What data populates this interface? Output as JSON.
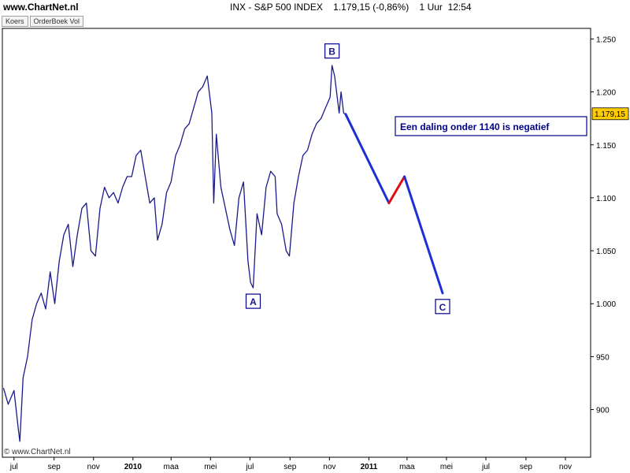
{
  "header": {
    "site": "www.ChartNet.nl",
    "quote": "INX - S&P 500 INDEX    1.179,15 (-0,86%)    1 Uur  12:54"
  },
  "tabs": [
    {
      "label": "Koers"
    },
    {
      "label": "OrderBoek Vol"
    }
  ],
  "footer": {
    "copyright": "© www.ChartNet.nl"
  },
  "colors": {
    "price_line": "#1a1a8c",
    "projection_down": "#1f2fd6",
    "projection_up": "#e01010",
    "price_tag_bg": "#ffcc00",
    "annotation_border": "#00008b"
  },
  "chart_data": {
    "type": "line",
    "title": "INX - S&P 500 INDEX",
    "last_price_label": "1.179,15",
    "ylim": [
      855,
      1260
    ],
    "y_ticks": [
      {
        "value": 900,
        "label": "900"
      },
      {
        "value": 950,
        "label": "950"
      },
      {
        "value": 1000,
        "label": "1.000"
      },
      {
        "value": 1050,
        "label": "1.050"
      },
      {
        "value": 1100,
        "label": "1.100"
      },
      {
        "value": 1150,
        "label": "1.150"
      },
      {
        "value": 1200,
        "label": "1.200"
      },
      {
        "value": 1250,
        "label": "1.250"
      }
    ],
    "x_ticks": [
      {
        "date": "2009-07",
        "label": "jul",
        "bold": false
      },
      {
        "date": "2009-09",
        "label": "sep",
        "bold": false
      },
      {
        "date": "2009-11",
        "label": "nov",
        "bold": false
      },
      {
        "date": "2010-01",
        "label": "2010",
        "bold": true
      },
      {
        "date": "2010-03",
        "label": "maa",
        "bold": false
      },
      {
        "date": "2010-05",
        "label": "mei",
        "bold": false
      },
      {
        "date": "2010-07",
        "label": "jul",
        "bold": false
      },
      {
        "date": "2010-09",
        "label": "sep",
        "bold": false
      },
      {
        "date": "2010-11",
        "label": "nov",
        "bold": false
      },
      {
        "date": "2011-01",
        "label": "2011",
        "bold": true
      },
      {
        "date": "2011-03",
        "label": "maa",
        "bold": false
      },
      {
        "date": "2011-05",
        "label": "mei",
        "bold": false
      },
      {
        "date": "2011-07",
        "label": "jul",
        "bold": false
      },
      {
        "date": "2011-09",
        "label": "sep",
        "bold": false
      },
      {
        "date": "2011-11",
        "label": "nov",
        "bold": false
      }
    ],
    "series": [
      {
        "points": [
          [
            "2009-06-15",
            920
          ],
          [
            "2009-06-22",
            905
          ],
          [
            "2009-07-01",
            918
          ],
          [
            "2009-07-08",
            880
          ],
          [
            "2009-07-10",
            870
          ],
          [
            "2009-07-15",
            930
          ],
          [
            "2009-07-22",
            950
          ],
          [
            "2009-07-29",
            985
          ],
          [
            "2009-08-05",
            1000
          ],
          [
            "2009-08-12",
            1010
          ],
          [
            "2009-08-19",
            995
          ],
          [
            "2009-08-26",
            1030
          ],
          [
            "2009-09-02",
            1000
          ],
          [
            "2009-09-09",
            1040
          ],
          [
            "2009-09-16",
            1065
          ],
          [
            "2009-09-23",
            1075
          ],
          [
            "2009-09-30",
            1035
          ],
          [
            "2009-10-07",
            1065
          ],
          [
            "2009-10-14",
            1090
          ],
          [
            "2009-10-21",
            1095
          ],
          [
            "2009-10-28",
            1050
          ],
          [
            "2009-11-04",
            1045
          ],
          [
            "2009-11-11",
            1090
          ],
          [
            "2009-11-18",
            1110
          ],
          [
            "2009-11-25",
            1100
          ],
          [
            "2009-12-02",
            1105
          ],
          [
            "2009-12-09",
            1095
          ],
          [
            "2009-12-16",
            1110
          ],
          [
            "2009-12-23",
            1120
          ],
          [
            "2009-12-30",
            1120
          ],
          [
            "2010-01-06",
            1140
          ],
          [
            "2010-01-13",
            1145
          ],
          [
            "2010-01-20",
            1120
          ],
          [
            "2010-01-27",
            1095
          ],
          [
            "2010-02-03",
            1100
          ],
          [
            "2010-02-08",
            1060
          ],
          [
            "2010-02-15",
            1075
          ],
          [
            "2010-02-22",
            1105
          ],
          [
            "2010-03-01",
            1115
          ],
          [
            "2010-03-08",
            1140
          ],
          [
            "2010-03-15",
            1150
          ],
          [
            "2010-03-22",
            1165
          ],
          [
            "2010-03-29",
            1170
          ],
          [
            "2010-04-05",
            1185
          ],
          [
            "2010-04-12",
            1200
          ],
          [
            "2010-04-19",
            1205
          ],
          [
            "2010-04-26",
            1215
          ],
          [
            "2010-05-03",
            1180
          ],
          [
            "2010-05-06",
            1095
          ],
          [
            "2010-05-10",
            1160
          ],
          [
            "2010-05-17",
            1110
          ],
          [
            "2010-05-24",
            1090
          ],
          [
            "2010-05-31",
            1070
          ],
          [
            "2010-06-07",
            1055
          ],
          [
            "2010-06-14",
            1100
          ],
          [
            "2010-06-21",
            1115
          ],
          [
            "2010-06-28",
            1040
          ],
          [
            "2010-07-02",
            1020
          ],
          [
            "2010-07-06",
            1015
          ],
          [
            "2010-07-12",
            1085
          ],
          [
            "2010-07-19",
            1065
          ],
          [
            "2010-07-26",
            1110
          ],
          [
            "2010-08-02",
            1125
          ],
          [
            "2010-08-09",
            1120
          ],
          [
            "2010-08-12",
            1085
          ],
          [
            "2010-08-19",
            1075
          ],
          [
            "2010-08-26",
            1050
          ],
          [
            "2010-08-31",
            1045
          ],
          [
            "2010-09-07",
            1095
          ],
          [
            "2010-09-14",
            1120
          ],
          [
            "2010-09-21",
            1140
          ],
          [
            "2010-09-28",
            1145
          ],
          [
            "2010-10-05",
            1160
          ],
          [
            "2010-10-12",
            1170
          ],
          [
            "2010-10-19",
            1175
          ],
          [
            "2010-10-26",
            1185
          ],
          [
            "2010-11-02",
            1195
          ],
          [
            "2010-11-05",
            1225
          ],
          [
            "2010-11-09",
            1215
          ],
          [
            "2010-11-12",
            1200
          ],
          [
            "2010-11-16",
            1180
          ],
          [
            "2010-11-19",
            1200
          ],
          [
            "2010-11-23",
            1180
          ],
          [
            "2010-11-26",
            1179
          ]
        ]
      },
      {
        "points": [
          [
            "2010-11-26",
            1179
          ],
          [
            "2011-02-01",
            1095
          ]
        ]
      },
      {
        "points": [
          [
            "2011-02-01",
            1095
          ],
          [
            "2011-02-25",
            1120
          ]
        ]
      },
      {
        "points": [
          [
            "2011-02-25",
            1120
          ],
          [
            "2011-04-25",
            1010
          ]
        ]
      }
    ],
    "wave_labels": [
      {
        "label": "A",
        "date": "2010-07-06",
        "value": 1015,
        "position": "below"
      },
      {
        "label": "B",
        "date": "2010-11-05",
        "value": 1226,
        "position": "above"
      },
      {
        "label": "C",
        "date": "2011-04-25",
        "value": 1010,
        "position": "below"
      }
    ],
    "annotations": [
      {
        "text": "Een daling onder 1140 is negatief"
      }
    ]
  }
}
